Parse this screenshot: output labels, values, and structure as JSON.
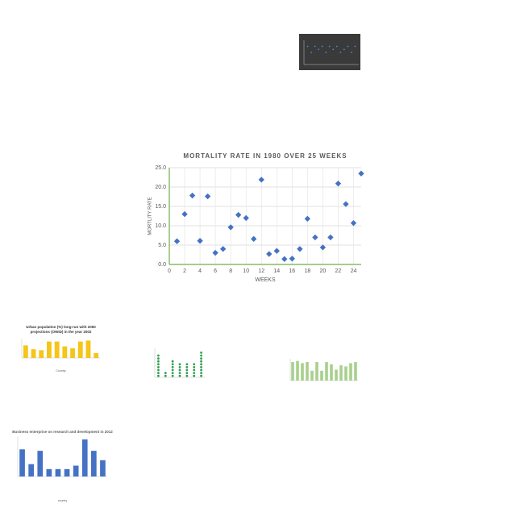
{
  "chart_data": [
    {
      "type": "scatter",
      "title": "MORTALITY RATE IN 1980 OVER 25 WEEKS",
      "x_label": "WEEKS",
      "y_label": "MORTLITY RATE",
      "x": [
        1,
        2,
        3,
        4,
        5,
        6,
        7,
        8,
        9,
        10,
        11,
        12,
        13,
        14,
        15,
        16,
        17,
        18,
        19,
        20,
        21,
        22,
        23,
        24,
        25
      ],
      "values": [
        6.0,
        13.0,
        17.8,
        6.1,
        17.6,
        3.0,
        4.0,
        9.6,
        12.8,
        12.0,
        6.6,
        21.9,
        2.7,
        3.5,
        1.4,
        1.5,
        4.0,
        11.8,
        7.0,
        4.4,
        7.0,
        20.9,
        15.6,
        10.7,
        23.5
      ],
      "color": "#4472c4",
      "xlim": [
        0,
        25
      ],
      "xticks": [
        0,
        2,
        4,
        6,
        8,
        10,
        12,
        14,
        16,
        18,
        20,
        22,
        24
      ],
      "ylim": [
        0,
        25
      ],
      "yticks": [
        {
          "value": 0,
          "label": "0.0"
        },
        {
          "value": 5,
          "label": "5.0"
        },
        {
          "value": 10,
          "label": "10.0"
        },
        {
          "value": 15,
          "label": "15.0"
        },
        {
          "value": 20,
          "label": "20.0"
        },
        {
          "value": 25,
          "label": "25.0"
        }
      ],
      "grid": true
    },
    {
      "type": "scatter",
      "x": [
        1,
        2,
        3,
        4,
        5,
        6,
        7,
        8,
        9,
        10,
        11,
        12,
        13,
        14
      ],
      "values": [
        6,
        4,
        6,
        5,
        6,
        4,
        6,
        5,
        6,
        4,
        5,
        6,
        4,
        6
      ],
      "color": "#4a86c8",
      "xlim": [
        0,
        15
      ],
      "ylim": [
        0,
        8
      ],
      "background": "#3a3a3a"
    },
    {
      "type": "bar",
      "title": [
        "Urban population (%) long-run with 2050",
        "projections (OWID) in the year 2002"
      ],
      "x_label": "Country",
      "values": [
        65,
        45,
        40,
        85,
        85,
        60,
        50,
        85,
        90,
        25
      ],
      "color": "#f5c518",
      "ylim": [
        0,
        100
      ]
    },
    {
      "type": "dotplot",
      "values": [
        8,
        2,
        6,
        5,
        5,
        5,
        9
      ],
      "color": "#2e9e4f",
      "ylim": [
        0,
        10
      ]
    },
    {
      "type": "bar",
      "values": [
        85,
        90,
        80,
        85,
        45,
        85,
        45,
        85,
        75,
        50,
        70,
        65,
        80,
        85
      ],
      "color": "#a8d08d",
      "ylim": [
        0,
        100
      ]
    },
    {
      "type": "bar",
      "title": "Business enterprise on research and development in 2012",
      "x_label": "country",
      "values": [
        55000,
        25000,
        52000,
        15000,
        15000,
        15000,
        22000,
        75000,
        52000,
        33000
      ],
      "color": "#4472c4",
      "ylim": [
        0,
        80000
      ]
    }
  ]
}
